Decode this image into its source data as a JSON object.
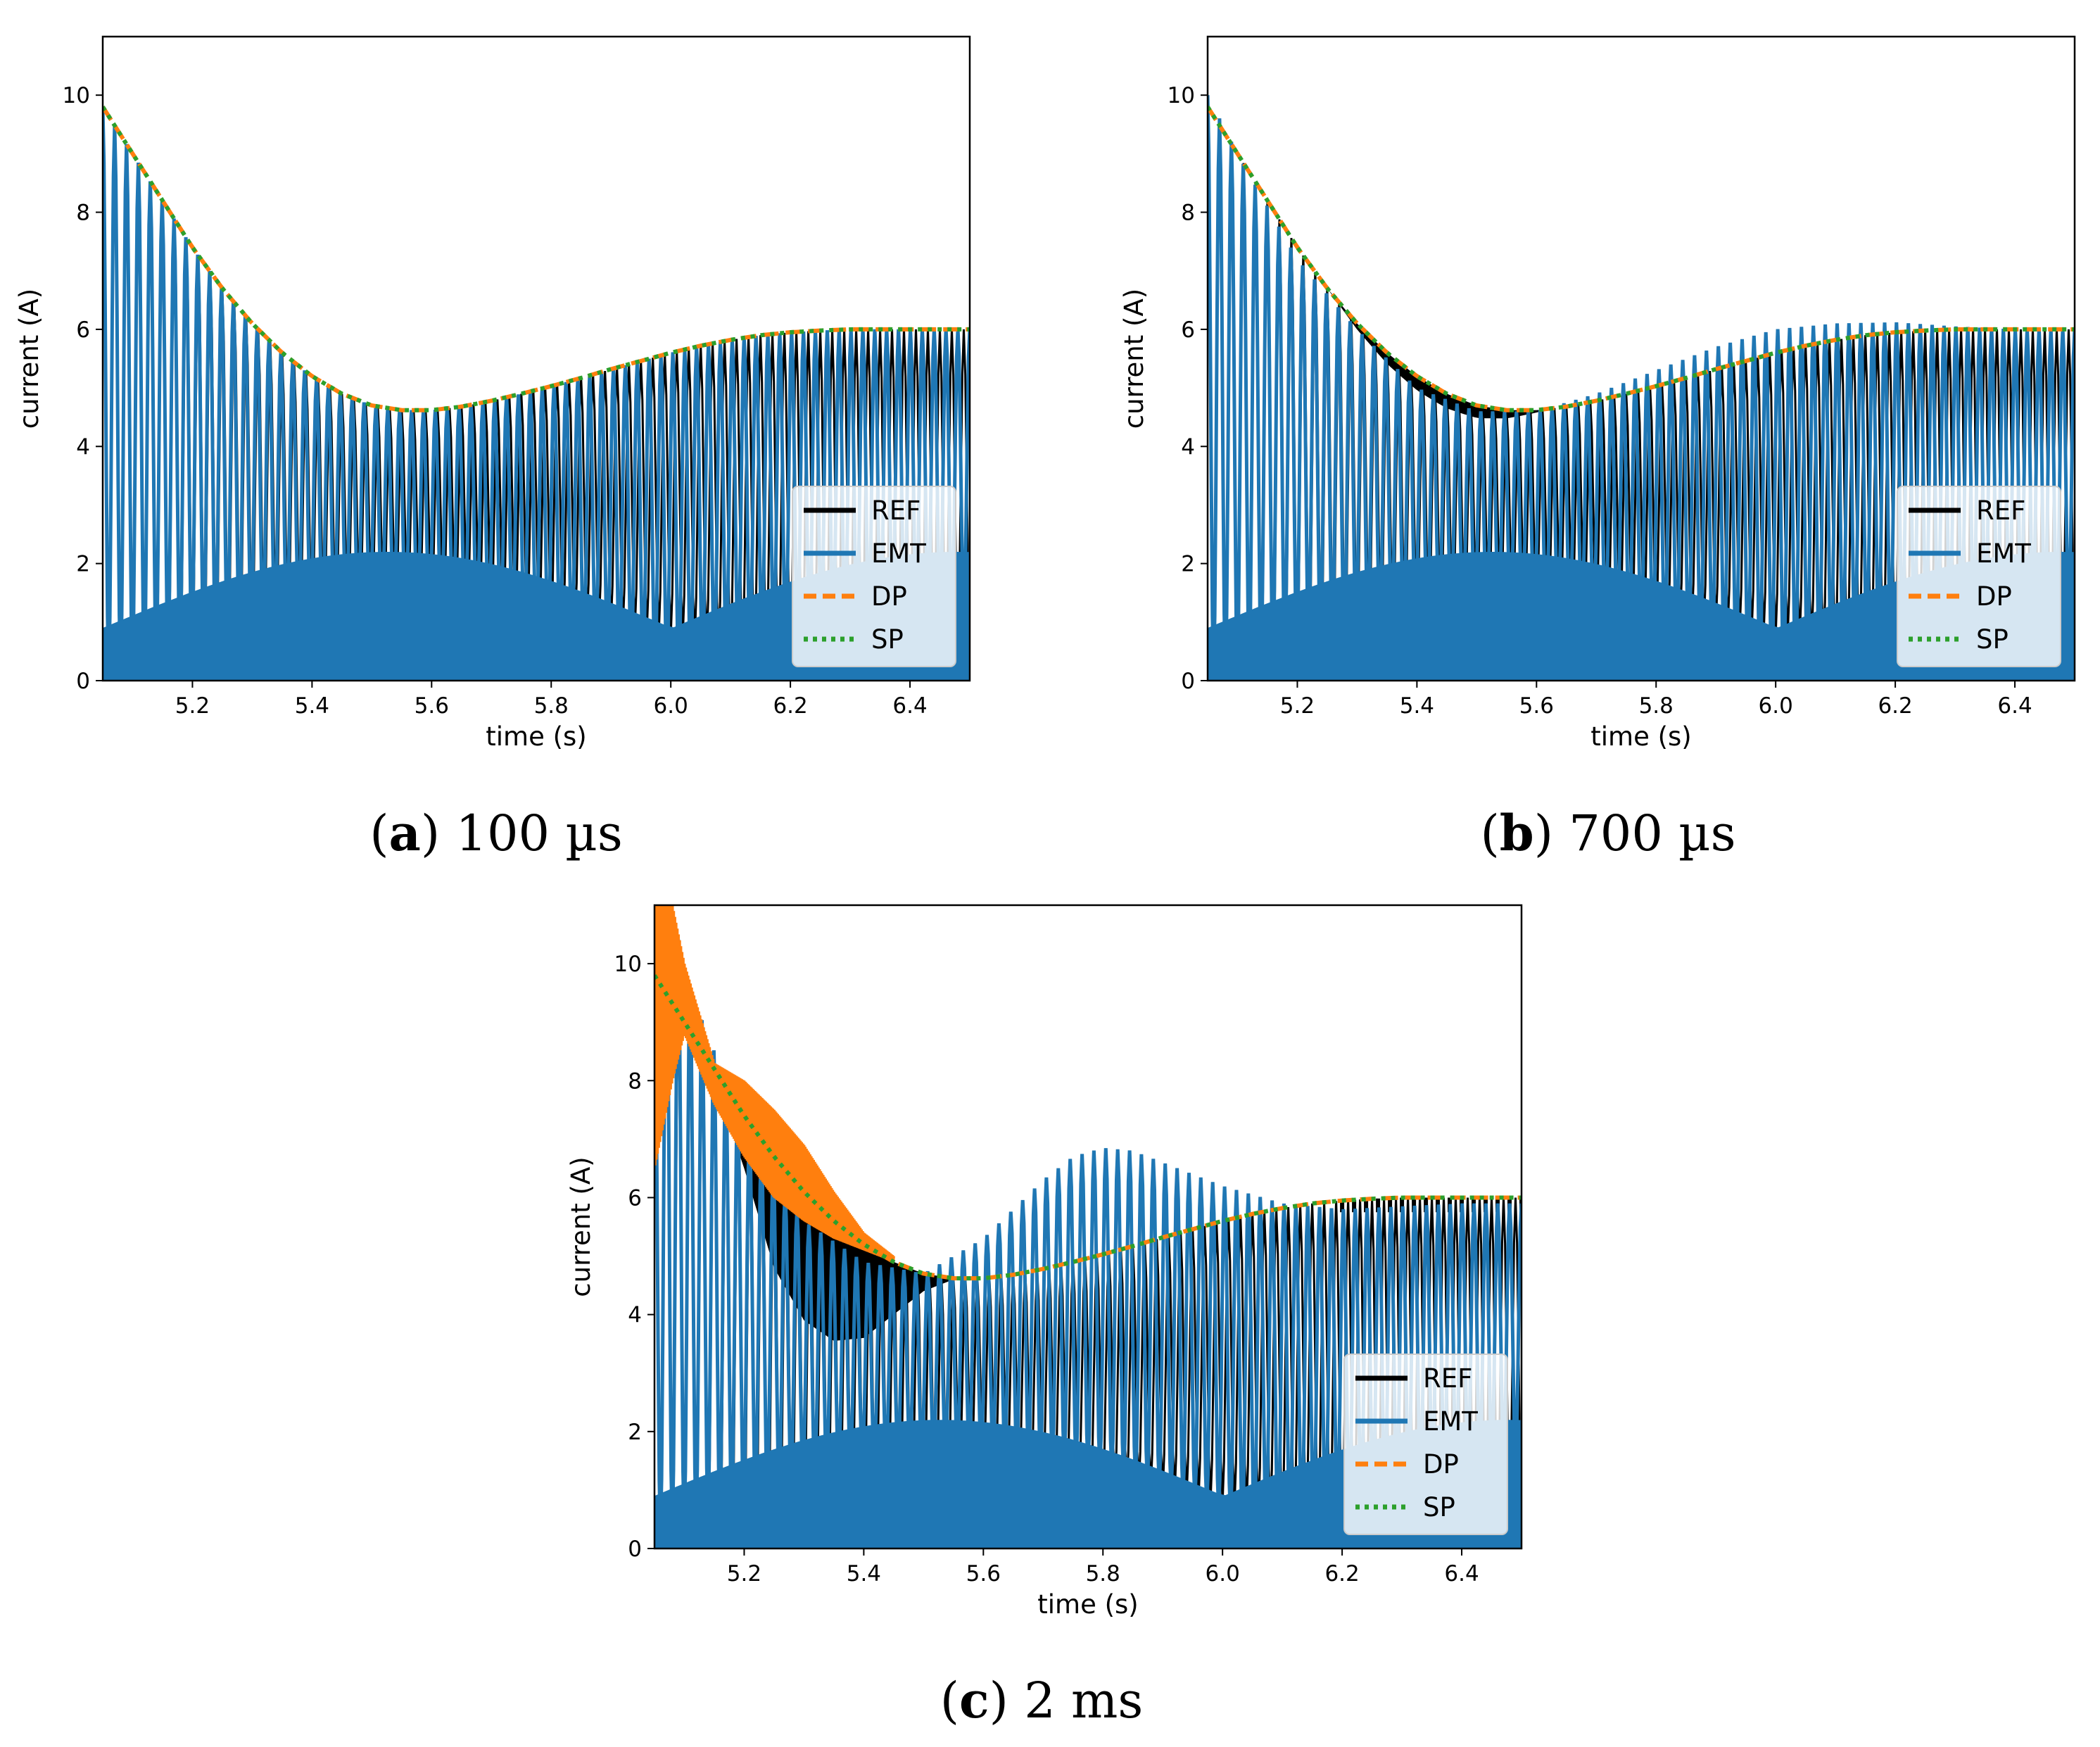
{
  "colors": {
    "REF": "#000000",
    "EMT": "#1f77b4",
    "DP": "#ff7f0e",
    "SP": "#2ca02c",
    "legend_bg": "#ffffff"
  },
  "chart_data": [
    {
      "type": "line",
      "panel": "a",
      "caption_letter": "a",
      "caption_value": "100 µs",
      "xlabel": "time (s)",
      "ylabel": "current (A)",
      "xlim": [
        5.05,
        6.5
      ],
      "ylim": [
        0,
        11
      ],
      "xticks": [
        "5.2",
        "5.4",
        "5.6",
        "5.8",
        "6.0",
        "6.2",
        "6.4"
      ],
      "yticks": [
        "0",
        "2",
        "4",
        "6",
        "8",
        "10"
      ],
      "legend_position": "lower right",
      "legend": [
        "REF",
        "EMT",
        "DP",
        "SP"
      ],
      "envelope": {
        "x": [
          5.05,
          5.1,
          5.15,
          5.2,
          5.25,
          5.3,
          5.35,
          5.4,
          5.45,
          5.5,
          5.55,
          5.6,
          5.65,
          5.7,
          5.75,
          5.8,
          5.85,
          5.9,
          5.95,
          6.0,
          6.05,
          6.1,
          6.15,
          6.2,
          6.25,
          6.3,
          6.35,
          6.4,
          6.45,
          6.5
        ],
        "values": [
          9.8,
          9.0,
          8.2,
          7.4,
          6.7,
          6.1,
          5.6,
          5.2,
          4.9,
          4.7,
          4.62,
          4.62,
          4.68,
          4.78,
          4.9,
          5.03,
          5.17,
          5.32,
          5.46,
          5.6,
          5.72,
          5.82,
          5.9,
          5.95,
          5.98,
          6.0,
          6.0,
          6.0,
          6.0,
          6.0
        ]
      },
      "series": [
        {
          "name": "REF",
          "note": "same as envelope (hidden under EMT)"
        },
        {
          "name": "EMT",
          "note": "oscillating current, peaks follow envelope, troughs near 0-2.3"
        },
        {
          "name": "DP",
          "note": "follows envelope"
        },
        {
          "name": "SP",
          "note": "follows envelope"
        }
      ],
      "emt_peaks_offset": [
        0
      ],
      "ref_trough_shift": 0,
      "ref_peak_delta": [
        0,
        0,
        0
      ],
      "dp_band": 0
    },
    {
      "type": "line",
      "panel": "b",
      "caption_letter": "b",
      "caption_value": "700 µs",
      "xlabel": "time (s)",
      "ylabel": "current (A)",
      "xlim": [
        5.05,
        6.5
      ],
      "ylim": [
        0,
        11
      ],
      "xticks": [
        "5.2",
        "5.4",
        "5.6",
        "5.8",
        "6.0",
        "6.2",
        "6.4"
      ],
      "yticks": [
        "0",
        "2",
        "4",
        "6",
        "8",
        "10"
      ],
      "legend_position": "lower right",
      "legend": [
        "REF",
        "EMT",
        "DP",
        "SP"
      ],
      "envelope": {
        "x": [
          5.05,
          5.1,
          5.15,
          5.2,
          5.25,
          5.3,
          5.35,
          5.4,
          5.45,
          5.5,
          5.55,
          5.6,
          5.65,
          5.7,
          5.75,
          5.8,
          5.85,
          5.9,
          5.95,
          6.0,
          6.05,
          6.1,
          6.15,
          6.2,
          6.25,
          6.3,
          6.35,
          6.4,
          6.45,
          6.5
        ],
        "values": [
          9.8,
          9.0,
          8.2,
          7.4,
          6.7,
          6.1,
          5.6,
          5.2,
          4.9,
          4.7,
          4.62,
          4.62,
          4.68,
          4.78,
          4.9,
          5.03,
          5.17,
          5.32,
          5.46,
          5.6,
          5.72,
          5.82,
          5.9,
          5.95,
          5.98,
          6.0,
          6.0,
          6.0,
          6.0,
          6.0
        ]
      },
      "emt_peaks": {
        "x": [
          5.05,
          5.1,
          5.2,
          5.3,
          5.4,
          5.5,
          5.6,
          5.7,
          5.8,
          5.9,
          6.0,
          6.1,
          6.2,
          6.3,
          6.4,
          6.5
        ],
        "values": [
          10.0,
          9.0,
          7.2,
          6.0,
          5.0,
          4.6,
          4.6,
          4.9,
          5.3,
          5.7,
          6.0,
          6.1,
          6.12,
          6.05,
          6.0,
          6.0
        ]
      },
      "series": [
        {
          "name": "REF",
          "note": "black oscillation dipping below envelope around 5.3-5.6 s"
        },
        {
          "name": "EMT",
          "note": "oscillating, peak overshoot around 6.0-6.3 s (~6.1)"
        },
        {
          "name": "DP",
          "note": "follows envelope"
        },
        {
          "name": "SP",
          "note": "follows envelope"
        }
      ]
    },
    {
      "type": "line",
      "panel": "c",
      "caption_letter": "c",
      "caption_value": "2 ms",
      "xlabel": "time (s)",
      "ylabel": "current (A)",
      "xlim": [
        5.05,
        6.5
      ],
      "ylim": [
        0,
        11
      ],
      "xticks": [
        "5.2",
        "5.4",
        "5.6",
        "5.8",
        "6.0",
        "6.2",
        "6.4"
      ],
      "yticks": [
        "0",
        "2",
        "4",
        "6",
        "8",
        "10"
      ],
      "legend_position": "lower right",
      "legend": [
        "REF",
        "EMT",
        "DP",
        "SP"
      ],
      "envelope": {
        "x": [
          5.05,
          5.1,
          5.15,
          5.2,
          5.25,
          5.3,
          5.35,
          5.4,
          5.45,
          5.5,
          5.55,
          5.6,
          5.65,
          5.7,
          5.75,
          5.8,
          5.85,
          5.9,
          5.95,
          6.0,
          6.05,
          6.1,
          6.15,
          6.2,
          6.25,
          6.3,
          6.35,
          6.4,
          6.45,
          6.5
        ],
        "values": [
          9.8,
          9.0,
          8.2,
          7.4,
          6.7,
          6.1,
          5.6,
          5.2,
          4.9,
          4.7,
          4.62,
          4.62,
          4.68,
          4.78,
          4.9,
          5.03,
          5.17,
          5.32,
          5.46,
          5.6,
          5.72,
          5.82,
          5.9,
          5.95,
          5.98,
          6.0,
          6.0,
          6.0,
          6.0,
          6.0
        ]
      },
      "emt_peaks": {
        "x": [
          5.05,
          5.08,
          5.1,
          5.15,
          5.2,
          5.3,
          5.4,
          5.5,
          5.6,
          5.7,
          5.75,
          5.8,
          5.85,
          5.9,
          6.0,
          6.1,
          6.2,
          6.3,
          6.4,
          6.5
        ],
        "values": [
          9.5,
          11.0,
          9.8,
          8.5,
          7.2,
          5.6,
          4.9,
          4.7,
          5.3,
          6.3,
          6.7,
          6.85,
          6.8,
          6.6,
          6.2,
          5.9,
          5.8,
          5.85,
          5.9,
          5.9
        ]
      },
      "ref_band": {
        "x": [
          5.15,
          5.2,
          5.25,
          5.3,
          5.35,
          5.4,
          5.45,
          5.5,
          5.55
        ],
        "values": [
          8.0,
          6.5,
          4.8,
          3.9,
          3.55,
          3.6,
          4.0,
          4.4,
          4.6
        ]
      },
      "dp_band": {
        "x": [
          5.05,
          5.08,
          5.1,
          5.15,
          5.2,
          5.25,
          5.3,
          5.35,
          5.4,
          5.45
        ],
        "upper": [
          11.0,
          11.0,
          10.0,
          8.3,
          8.0,
          7.5,
          6.9,
          6.1,
          5.4,
          5.0
        ],
        "lower": [
          6.5,
          8.0,
          8.8,
          7.6,
          6.7,
          6.0,
          5.6,
          5.3,
          5.1,
          4.9
        ]
      },
      "series": [
        {
          "name": "REF",
          "note": "black oscillation band dipping to ~3.6 near 5.35 s"
        },
        {
          "name": "EMT",
          "note": "oscillating, overshoot bump ~6.85 around 5.8 s"
        },
        {
          "name": "DP",
          "note": "orange oscillation band in 5.05-5.45 s, then follows envelope"
        },
        {
          "name": "SP",
          "note": "follows envelope"
        }
      ]
    }
  ],
  "captions": {
    "a": {
      "letter": "a",
      "value": "100 µs"
    },
    "b": {
      "letter": "b",
      "value": "700 µs"
    },
    "c": {
      "letter": "c",
      "value": "2 ms"
    }
  }
}
